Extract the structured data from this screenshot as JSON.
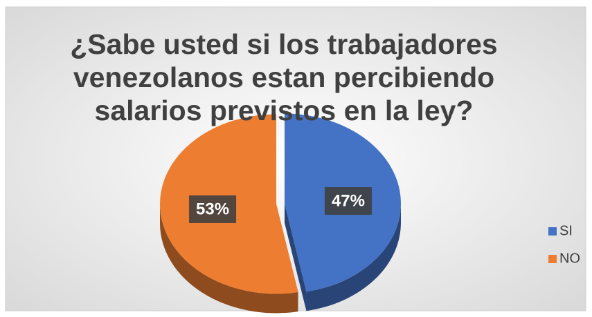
{
  "chart_data": {
    "type": "pie",
    "title": "¿Sabe usted si los trabajadores venezolanos estan percibiendo salarios previstos en la ley?",
    "categories": [
      "SI",
      "NO"
    ],
    "values": [
      47,
      53
    ],
    "value_labels": [
      "47%",
      "53%"
    ],
    "colors": [
      "#4472c4",
      "#ed7d31"
    ],
    "legend": "right"
  }
}
